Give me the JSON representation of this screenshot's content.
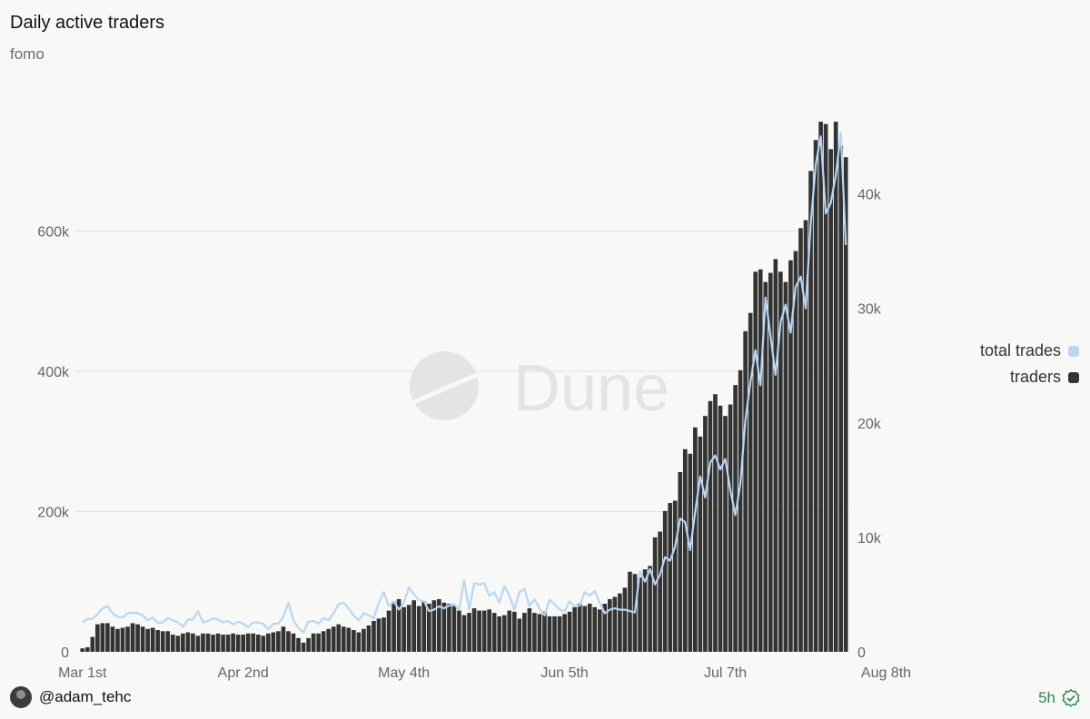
{
  "header": {
    "title": "Daily active traders",
    "subtitle": "fomo"
  },
  "watermark": {
    "text": "Dune"
  },
  "legend": {
    "items": [
      {
        "label": "total trades",
        "color": "#b8d6f5"
      },
      {
        "label": "traders",
        "color": "#333333"
      }
    ]
  },
  "footer": {
    "user": "@adam_tehc",
    "age": "5h"
  },
  "chart_data": {
    "type": "bar",
    "grid": true,
    "legend_position": "right",
    "x_ticks": [
      "Mar 1st",
      "Apr 2nd",
      "May 4th",
      "Jun 5th",
      "Jul 7th",
      "Aug 8th"
    ],
    "y_left": {
      "ticks": [
        "0",
        "200k",
        "400k",
        "600k"
      ],
      "range": [
        0,
        800000
      ]
    },
    "y_right": {
      "ticks": [
        "0",
        "10k",
        "20k",
        "30k",
        "40k"
      ],
      "range": [
        0,
        49000
      ]
    },
    "series": [
      {
        "name": "traders",
        "axis": "right",
        "kind": "bar",
        "color": "#333333",
        "values": [
          300,
          400,
          1300,
          2400,
          2500,
          2500,
          2200,
          2000,
          2100,
          2200,
          2500,
          2400,
          2200,
          2000,
          2100,
          1900,
          1800,
          1800,
          1500,
          1400,
          1600,
          1700,
          1600,
          1400,
          1600,
          1600,
          1500,
          1600,
          1500,
          1500,
          1600,
          1500,
          1500,
          1600,
          1600,
          1500,
          1400,
          1600,
          1700,
          1800,
          2200,
          1800,
          1600,
          1200,
          800,
          1200,
          1600,
          1600,
          1800,
          2000,
          2200,
          2400,
          2200,
          2100,
          1900,
          1700,
          2000,
          2300,
          2700,
          2900,
          3000,
          3600,
          4400,
          4600,
          3900,
          4100,
          4500,
          4000,
          4400,
          4200,
          4500,
          4600,
          4300,
          4200,
          4000,
          3600,
          3200,
          3400,
          3800,
          3600,
          3600,
          3700,
          3400,
          3100,
          3200,
          3600,
          3500,
          2900,
          3400,
          3800,
          3400,
          3300,
          3500,
          3100,
          3100,
          3100,
          3300,
          3500,
          3900,
          4200,
          4000,
          4200,
          3900,
          3700,
          4200,
          4600,
          4800,
          5100,
          5600,
          7000,
          6800,
          6500,
          7200,
          7500,
          10000,
          10500,
          12300,
          13000,
          13200,
          15700,
          17700,
          17300,
          19600,
          18800,
          20600,
          21900,
          22500,
          21500,
          20600,
          21600,
          23300,
          24600,
          28000,
          29600,
          33200,
          33400,
          32300,
          33100,
          34300,
          33200,
          32300,
          34200,
          35000,
          37000,
          37700,
          42000,
          44700,
          46300,
          46100,
          43900,
          46300,
          44200,
          43200
        ]
      },
      {
        "name": "total trades",
        "axis": "left",
        "kind": "line",
        "color": "#b8d6f5",
        "values": [
          42000,
          47000,
          47000,
          54000,
          62000,
          65000,
          55000,
          50000,
          49000,
          55000,
          56000,
          55000,
          52000,
          45000,
          49000,
          41000,
          42000,
          48000,
          45000,
          42000,
          36000,
          46000,
          46000,
          58000,
          42000,
          44000,
          48000,
          46000,
          42000,
          44000,
          39000,
          43000,
          40000,
          35000,
          42000,
          42000,
          40000,
          32000,
          40000,
          40000,
          50000,
          70000,
          45000,
          34000,
          28000,
          43000,
          44000,
          40000,
          48000,
          45000,
          55000,
          68000,
          70000,
          62000,
          52000,
          45000,
          55000,
          52000,
          48000,
          70000,
          85000,
          65000,
          72000,
          60000,
          70000,
          92000,
          82000,
          74000,
          72000,
          58000,
          60000,
          65000,
          62000,
          66000,
          68000,
          60000,
          102000,
          60000,
          98000,
          96000,
          98000,
          80000,
          85000,
          70000,
          94000,
          80000,
          60000,
          85000,
          90000,
          65000,
          75000,
          62000,
          52000,
          74000,
          68000,
          60000,
          58000,
          72000,
          65000,
          66000,
          85000,
          80000,
          87000,
          70000,
          55000,
          60000,
          62000,
          60000,
          60000,
          58000,
          56000,
          115000,
          100000,
          118000,
          96000,
          110000,
          135000,
          130000,
          150000,
          190000,
          185000,
          145000,
          200000,
          250000,
          220000,
          270000,
          280000,
          260000,
          275000,
          230000,
          195000,
          240000,
          330000,
          385000,
          430000,
          380000,
          505000,
          450000,
          395000,
          470000,
          495000,
          455000,
          520000,
          535000,
          490000,
          610000,
          695000,
          735000,
          625000,
          640000,
          680000,
          740000,
          580000
        ]
      }
    ]
  }
}
